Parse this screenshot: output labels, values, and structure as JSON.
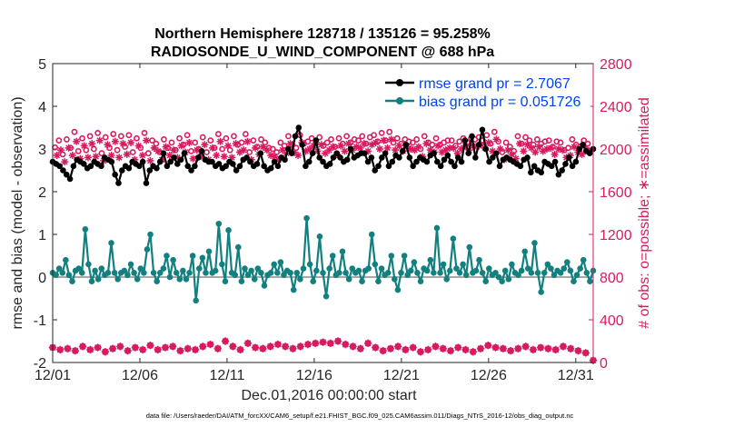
{
  "chart_data": {
    "type": "line",
    "title_line1": "Northern Hemisphere 128718 / 135126 = 95.258%",
    "title_line2": "RADIOSONDE_U_WIND_COMPONENT @ 688 hPa",
    "ylabel_left": "rmse and bias (model - observation)",
    "ylabel_right": "# of obs: o=possible; ∗=assimilated",
    "xlabel": "Dec.01,2016 00:00:00 start",
    "footer": "data file: /Users/raeder/DAI/ATM_forcXX/CAM6_setup/f.e21.FHIST_BGC.f09_025.CAM6assim.011/Diags_NTrS_2016-12/obs_diag_output.nc",
    "xlim": [
      1,
      32
    ],
    "ylim_left": [
      -2,
      5
    ],
    "ylim_right": [
      0,
      2800
    ],
    "left_ticks": [
      "-2",
      "-1",
      "0",
      "1",
      "2",
      "3",
      "4",
      "5"
    ],
    "right_ticks": [
      "0",
      "400",
      "800",
      "1200",
      "1600",
      "2000",
      "2400",
      "2800"
    ],
    "x_ticks": [
      {
        "day": 1,
        "label": "12/01"
      },
      {
        "day": 6,
        "label": "12/06"
      },
      {
        "day": 11,
        "label": "12/11"
      },
      {
        "day": 16,
        "label": "12/16"
      },
      {
        "day": 21,
        "label": "12/21"
      },
      {
        "day": 26,
        "label": "12/26"
      },
      {
        "day": 31,
        "label": "12/31"
      }
    ],
    "legend": [
      {
        "name": "rmse grand pr = 2.7067",
        "color": "#000000"
      },
      {
        "name": "bias grand pr = 0.051726",
        "color": "#138080"
      }
    ],
    "step_days": 0.25,
    "series": [
      {
        "name": "rmse",
        "axis": "left",
        "color": "#000000",
        "values": [
          2.7,
          2.65,
          2.6,
          2.5,
          2.4,
          2.3,
          2.6,
          2.75,
          2.7,
          2.65,
          2.55,
          2.6,
          2.7,
          2.65,
          2.6,
          2.8,
          2.75,
          2.7,
          2.4,
          2.2,
          2.5,
          2.6,
          2.55,
          2.7,
          2.65,
          2.6,
          2.7,
          2.2,
          2.5,
          2.6,
          2.55,
          2.7,
          2.9,
          2.6,
          2.7,
          2.8,
          2.65,
          2.75,
          2.9,
          2.6,
          2.5,
          2.6,
          2.8,
          2.95,
          2.75,
          2.7,
          2.7,
          2.6,
          2.65,
          2.55,
          2.6,
          2.7,
          2.65,
          2.5,
          2.6,
          2.75,
          2.8,
          2.7,
          2.6,
          2.65,
          2.9,
          2.6,
          2.5,
          2.55,
          2.7,
          2.6,
          2.8,
          2.75,
          3.0,
          2.9,
          3.3,
          3.5,
          3.1,
          2.6,
          2.7,
          2.9,
          3.2,
          2.8,
          2.7,
          2.6,
          2.65,
          2.8,
          2.9,
          2.8,
          2.7,
          2.75,
          3.0,
          2.8,
          2.85,
          2.9,
          2.9,
          2.7,
          2.8,
          2.5,
          2.6,
          2.8,
          2.9,
          2.6,
          2.7,
          2.85,
          2.8,
          2.95,
          3.1,
          2.8,
          2.6,
          2.7,
          2.8,
          2.75,
          2.7,
          2.85,
          2.9,
          2.7,
          2.6,
          2.75,
          2.85,
          2.7,
          2.6,
          2.8,
          2.7,
          3.2,
          2.9,
          3.3,
          2.8,
          3.1,
          3.45,
          3.0,
          2.7,
          2.8,
          2.9,
          2.6,
          2.75,
          2.8,
          2.75,
          2.7,
          2.65,
          2.6,
          2.75,
          2.8,
          2.45,
          2.6,
          2.5,
          2.45,
          2.7,
          2.65,
          2.6,
          2.7,
          2.4,
          2.5,
          2.65,
          2.8,
          2.6,
          2.7,
          3.0,
          3.1,
          2.95,
          2.9,
          3.0
        ]
      },
      {
        "name": "bias",
        "axis": "left",
        "color": "#138080",
        "values": [
          0.1,
          0.05,
          0.2,
          0.1,
          0.4,
          0.05,
          -0.1,
          0.15,
          0.2,
          0.1,
          1.12,
          0.3,
          -0.1,
          0.15,
          -0.05,
          0.2,
          0.05,
          0.1,
          0.8,
          0.1,
          -0.05,
          0.1,
          0.15,
          0.05,
          0.3,
          0.1,
          -0.05,
          0.2,
          0.1,
          0.65,
          1.0,
          0.1,
          -0.1,
          0.1,
          0.2,
          0.5,
          0.0,
          0.4,
          0.1,
          -0.05,
          0.15,
          -0.05,
          0.1,
          0.5,
          -0.55,
          0.2,
          0.45,
          0.1,
          0.6,
          0.1,
          0.15,
          1.25,
          0.3,
          -0.1,
          1.1,
          0.1,
          0.05,
          0.7,
          -0.1,
          0.2,
          0.05,
          0.15,
          -0.05,
          0.2,
          0.1,
          -0.2,
          0.05,
          0.1,
          0.3,
          0.1,
          0.35,
          0.05,
          0.15,
          0.1,
          -0.3,
          0.1,
          -0.05,
          0.2,
          1.38,
          0.3,
          -0.1,
          0.15,
          0.95,
          0.1,
          -0.45,
          0.2,
          0.5,
          0.05,
          0.1,
          0.6,
          0.1,
          -0.05,
          0.2,
          0.1,
          0.15,
          -0.1,
          0.15,
          0.2,
          1.0,
          0.3,
          -0.1,
          0.2,
          0.05,
          0.1,
          0.5,
          -0.05,
          -0.3,
          0.1,
          0.5,
          0.05,
          0.15,
          0.35,
          0.1,
          -0.1,
          0.2,
          0.15,
          0.4,
          0.1,
          1.15,
          0.1,
          0.3,
          -0.05,
          0.15,
          0.9,
          0.2,
          0.1,
          0.3,
          0.05,
          0.7,
          0.1,
          0.15,
          0.4,
          0.1,
          -0.1,
          0.2,
          0.05,
          0.1,
          0.0,
          -0.1,
          0.15,
          -0.05,
          0.3,
          0.1,
          0.05,
          0.15,
          0.6,
          0.2,
          0.1,
          0.8,
          0.1,
          -0.35,
          0.1,
          0.3,
          0.2,
          0.05,
          0.15,
          0.1,
          0.2,
          0.35,
          0.15,
          -0.1,
          0.05,
          0.2,
          0.4,
          0.1,
          -0.1,
          0.15
        ]
      },
      {
        "name": "possible",
        "axis": "right",
        "color": "#d81b60",
        "values": [
          2015,
          2080,
          1950,
          2090,
          2010,
          2160,
          1980,
          2100,
          1990,
          2120,
          2000,
          2150,
          1960,
          2110,
          2010,
          2140,
          1990,
          2120,
          2020,
          2130,
          1970,
          2100,
          2010,
          2150,
          1960,
          2080,
          2050,
          1970,
          2090,
          2010,
          2060,
          1990,
          2100,
          2040,
          2130,
          1980,
          2060,
          2000,
          2110,
          1970,
          2080,
          2010,
          2140,
          2000,
          2100,
          1990,
          2120,
          2040,
          2060,
          2140,
          1970,
          2080,
          2020,
          2090,
          2060,
          2010,
          2000,
          1970,
          2060,
          2030,
          2120,
          2040,
          2010,
          2130,
          2050,
          2070,
          2100,
          2050,
          2110,
          2030,
          2060,
          2090,
          2020,
          2100,
          2050,
          2120,
          2060,
          2090,
          2080,
          2120,
          2050,
          2110,
          2130,
          2070,
          2150,
          2080,
          2160,
          2060,
          2100,
          2050,
          2090,
          2070,
          2060,
          2090,
          2000,
          2120,
          2060,
          2040,
          2100,
          2040,
          2060,
          2080,
          2080,
          2030,
          2070,
          2100,
          2060,
          2100,
          2090,
          2110,
          2080,
          2130,
          2050,
          2160,
          2070,
          1970,
          2060,
          2020,
          1980,
          2120,
          2050,
          2110,
          2080,
          2040,
          2090,
          2050,
          2070,
          2080,
          2020,
          2070,
          2060,
          1990,
          2010,
          2090,
          2040,
          2020,
          2080,
          2050
        ]
      },
      {
        "name": "assimilated",
        "axis": "right",
        "color": "#d81b60",
        "values": [
          1940,
          1990,
          1880,
          2010,
          1940,
          2070,
          1910,
          2030,
          1920,
          2050,
          1930,
          2080,
          1890,
          2040,
          1940,
          2070,
          1920,
          2050,
          1950,
          2060,
          1900,
          2030,
          1940,
          2080,
          1890,
          2010,
          1980,
          1900,
          2020,
          1940,
          1990,
          1920,
          2030,
          1970,
          2060,
          1910,
          1990,
          1930,
          2040,
          1900,
          2010,
          1940,
          2070,
          1930,
          2030,
          1920,
          2050,
          1970,
          1990,
          2070,
          1900,
          2010,
          1950,
          2020,
          1990,
          1940,
          1930,
          1900,
          1990,
          1960,
          2050,
          1970,
          1940,
          2060,
          1980,
          2000,
          2030,
          1980,
          2040,
          1960,
          1990,
          2020,
          1950,
          2030,
          1980,
          2050,
          1990,
          2020,
          2010,
          2050,
          1980,
          2040,
          2060,
          2000,
          2080,
          2010,
          2090,
          1990,
          2030,
          1980,
          2020,
          2000,
          1990,
          2020,
          1930,
          2050,
          1990,
          1970,
          2030,
          1970,
          1990,
          2010,
          2010,
          1960,
          2000,
          2030,
          1990,
          2030,
          2020,
          2040,
          2010,
          2060,
          1980,
          2090,
          2000,
          1900,
          1990,
          1950,
          1910,
          2050,
          1980,
          2040,
          2010,
          1970,
          2020,
          1980,
          2000,
          2010,
          1950,
          2000,
          1990,
          1920,
          1940,
          2020,
          1970,
          1950,
          2010,
          1980
        ]
      },
      {
        "name": "possible_bottom",
        "axis": "right",
        "color": "#d81b60",
        "values": [
          140,
          120,
          130,
          110,
          150,
          120,
          140,
          100,
          130,
          150,
          110,
          140,
          120,
          160,
          120,
          140,
          150,
          110,
          130,
          120,
          150,
          170,
          130,
          200,
          150,
          120,
          180,
          140,
          130,
          150,
          170,
          150,
          130,
          150,
          170,
          180,
          190,
          180,
          200,
          170,
          150,
          130,
          180,
          140,
          110,
          130,
          150,
          120,
          140,
          100,
          120,
          150,
          130,
          110,
          140,
          120,
          100,
          130,
          160,
          140,
          130,
          110,
          130,
          150,
          120,
          140,
          130,
          120,
          150,
          130,
          110,
          90,
          20
        ]
      }
    ]
  }
}
